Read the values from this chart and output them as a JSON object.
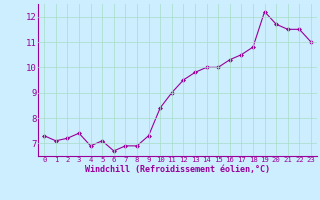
{
  "x": [
    0,
    1,
    2,
    3,
    4,
    5,
    6,
    7,
    8,
    9,
    10,
    11,
    12,
    13,
    14,
    15,
    16,
    17,
    18,
    19,
    20,
    21,
    22,
    23
  ],
  "y": [
    7.3,
    7.1,
    7.2,
    7.4,
    6.9,
    7.1,
    6.7,
    6.9,
    6.9,
    7.3,
    8.4,
    9.0,
    9.5,
    9.8,
    10.0,
    10.0,
    10.3,
    10.5,
    10.8,
    12.2,
    11.7,
    11.5,
    11.5,
    11.0
  ],
  "line_color": "#990099",
  "marker": "D",
  "marker_size": 2.0,
  "bg_color": "#cceeff",
  "grid_color": "#aaddcc",
  "xlabel": "Windchill (Refroidissement éolien,°C)",
  "xlabel_color": "#990099",
  "tick_color": "#990099",
  "ylim": [
    6.5,
    12.5
  ],
  "xlim": [
    -0.5,
    23.5
  ],
  "yticks": [
    7,
    8,
    9,
    10,
    11,
    12
  ],
  "xticks": [
    0,
    1,
    2,
    3,
    4,
    5,
    6,
    7,
    8,
    9,
    10,
    11,
    12,
    13,
    14,
    15,
    16,
    17,
    18,
    19,
    20,
    21,
    22,
    23
  ],
  "xlabel_fontsize": 6.0,
  "xtick_fontsize": 5.2,
  "ytick_fontsize": 6.5
}
